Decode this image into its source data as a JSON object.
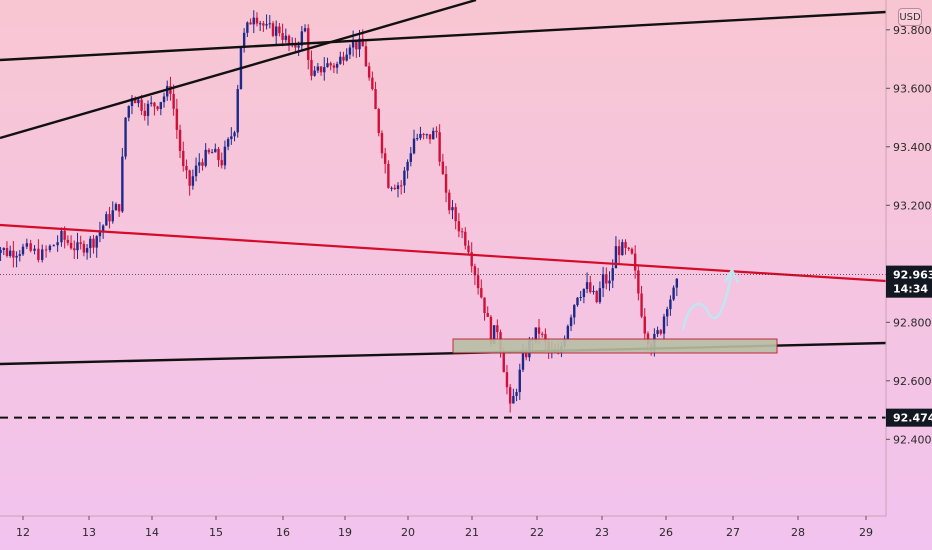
{
  "chart_data": {
    "type": "candlestick",
    "price_axis": {
      "ticks": [
        "92.400",
        "92.600",
        "92.800",
        "93.200",
        "93.400",
        "93.600",
        "93.800"
      ],
      "range": [
        92.36,
        94.05
      ]
    },
    "time_axis": {
      "ticks": [
        "12",
        "13",
        "14",
        "15",
        "16",
        "19",
        "20",
        "21",
        "22",
        "23",
        "26",
        "27",
        "28",
        "29"
      ]
    },
    "currency": "USD",
    "price_tags": [
      {
        "label": "92.963",
        "price": 92.963,
        "color": "#131722"
      },
      {
        "label": "14:34",
        "price": 92.915,
        "color": "#131722"
      },
      {
        "label": "92.474",
        "price": 92.474,
        "color": "#131722"
      }
    ],
    "current_price": 92.963,
    "support_price": 92.474,
    "colors": {
      "up": "#1e2a8a",
      "down": "#d0103a",
      "bg_top": "#f7c6d4",
      "bg_bottom": "#f3c2ee",
      "trend_red": "#d40c2a",
      "trend_black": "#111111",
      "zone_fill": "#b9bfa4",
      "projection": "#bfe7f2"
    },
    "series_anchors": [
      [
        11.5,
        93.07
      ],
      [
        11.75,
        93.04
      ],
      [
        12.0,
        93.05
      ],
      [
        12.3,
        93.03
      ],
      [
        12.6,
        93.09
      ],
      [
        12.85,
        93.05
      ],
      [
        13.1,
        93.08
      ],
      [
        13.3,
        93.15
      ],
      [
        13.5,
        93.2
      ],
      [
        13.6,
        93.5
      ],
      [
        13.7,
        93.58
      ],
      [
        13.9,
        93.53
      ],
      [
        14.1,
        93.55
      ],
      [
        14.3,
        93.6
      ],
      [
        14.5,
        93.32
      ],
      [
        14.6,
        93.27
      ],
      [
        14.75,
        93.35
      ],
      [
        14.95,
        93.38
      ],
      [
        15.1,
        93.35
      ],
      [
        15.3,
        93.47
      ],
      [
        15.4,
        93.75
      ],
      [
        15.6,
        93.86
      ],
      [
        15.8,
        93.8
      ],
      [
        16.0,
        93.8
      ],
      [
        16.2,
        93.73
      ],
      [
        16.4,
        93.8
      ],
      [
        16.5,
        93.63
      ],
      [
        16.7,
        93.68
      ],
      [
        16.9,
        93.68
      ],
      [
        17.1,
        93.76
      ],
      [
        17.3,
        93.74
      ],
      [
        17.5,
        93.52
      ],
      [
        17.7,
        93.28
      ],
      [
        17.9,
        93.27
      ],
      [
        18.1,
        93.43
      ],
      [
        18.3,
        93.43
      ],
      [
        18.45,
        93.45
      ],
      [
        18.6,
        93.22
      ],
      [
        18.75,
        93.15
      ],
      [
        18.95,
        93.06
      ],
      [
        19.1,
        92.93
      ],
      [
        19.2,
        92.85
      ],
      [
        19.3,
        92.75
      ],
      [
        19.4,
        92.78
      ],
      [
        19.5,
        92.65
      ],
      [
        19.6,
        92.5
      ],
      [
        19.7,
        92.58
      ],
      [
        19.8,
        92.67
      ],
      [
        19.95,
        92.75
      ],
      [
        20.05,
        92.77
      ],
      [
        20.2,
        92.7
      ],
      [
        20.35,
        92.68
      ],
      [
        20.5,
        92.8
      ],
      [
        20.65,
        92.9
      ],
      [
        20.8,
        92.92
      ],
      [
        20.95,
        92.87
      ],
      [
        21.05,
        92.95
      ],
      [
        21.15,
        92.93
      ],
      [
        21.25,
        93.05
      ],
      [
        21.35,
        93.05
      ],
      [
        21.5,
        93.02
      ],
      [
        21.6,
        92.9
      ],
      [
        21.7,
        92.78
      ],
      [
        21.8,
        92.72
      ],
      [
        21.95,
        92.78
      ],
      [
        22.05,
        92.87
      ],
      [
        22.15,
        92.9
      ],
      [
        22.25,
        92.95
      ]
    ]
  }
}
